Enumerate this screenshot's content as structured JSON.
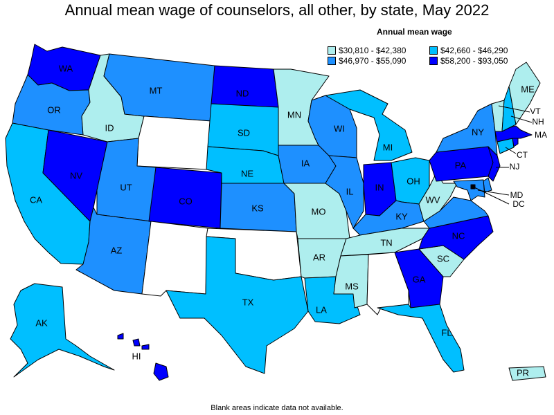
{
  "title": "Annual mean wage of counselors, all other, by state, May 2022",
  "legend": {
    "title": "Annual mean wage",
    "bins": [
      {
        "label": "$30,810 - $42,380",
        "color": "#aeeeee"
      },
      {
        "label": "$42,660 - $46,290",
        "color": "#00bfff"
      },
      {
        "label": "$46,970 - $55,090",
        "color": "#1e90ff"
      },
      {
        "label": "$58,200 - $93,050",
        "color": "#0000ff"
      }
    ]
  },
  "no_data_color": "#ffffff",
  "states": {
    "WA": 3,
    "OR": 2,
    "CA": 1,
    "NV": 3,
    "ID": 0,
    "MT": 2,
    "WY": null,
    "UT": 2,
    "AZ": 2,
    "CO": 3,
    "NM": null,
    "ND": 3,
    "SD": 1,
    "NE": 1,
    "KS": 2,
    "OK": null,
    "TX": 1,
    "MN": 0,
    "IA": 2,
    "MO": 0,
    "AR": 0,
    "LA": 1,
    "WI": 2,
    "IL": 2,
    "MI": 1,
    "IN": 3,
    "OH": 1,
    "KY": 2,
    "TN": 0,
    "MS": 0,
    "AL": null,
    "GA": 3,
    "FL": 1,
    "SC": 0,
    "NC": 3,
    "VA": 2,
    "WV": 0,
    "PA": 3,
    "NY": 2,
    "ME": 0,
    "VT": 0,
    "NH": 1,
    "MA": 3,
    "RI": 3,
    "CT": 1,
    "NJ": 3,
    "DE": 2,
    "MD": 2,
    "DC": 3,
    "AK": 1,
    "HI": 3,
    "PR": 0
  },
  "labels": [
    "WA",
    "OR",
    "CA",
    "NV",
    "ID",
    "MT",
    "UT",
    "AZ",
    "CO",
    "ND",
    "SD",
    "NE",
    "KS",
    "TX",
    "MN",
    "IA",
    "MO",
    "AR",
    "LA",
    "WI",
    "IL",
    "MI",
    "IN",
    "OH",
    "KY",
    "TN",
    "MS",
    "GA",
    "FL",
    "SC",
    "NC",
    "WV",
    "PA",
    "NY",
    "ME",
    "VT",
    "NH",
    "MA",
    "CT",
    "NJ",
    "MD",
    "DC",
    "AK",
    "HI",
    "PR"
  ],
  "footnote": "Blank areas indicate data not available."
}
